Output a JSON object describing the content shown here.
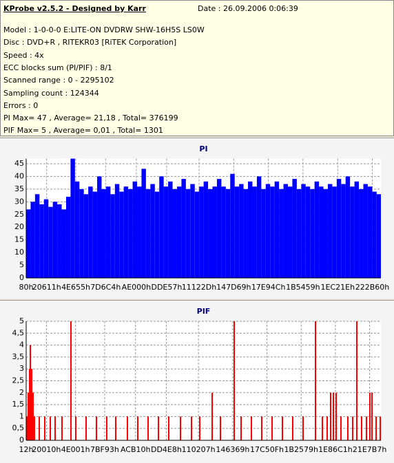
{
  "info": {
    "title": "KProbe v2.5.2 - Designed by Karr",
    "date": "Date : 26.09.2006 0:06:39",
    "lines": [
      "Model : 1-0-0-0 E:LITE-ON DVDRW SHW-16H5S  LS0W",
      "Disc : DVD+R , RITEKR03 [RiTEK Corporation]",
      "Speed : 4x",
      "ECC blocks sum (PI/PIF) : 8/1",
      "Scanned range : 0 - 2295102",
      "Sampling count : 124344",
      "Errors : 0",
      "PI Max= 47 , Average= 21,18 , Total= 376199",
      "PIF Max= 5 , Average= 0,01 , Total= 1301"
    ]
  },
  "chart_data": [
    {
      "type": "bar",
      "title": "PI",
      "color": "#0000ff",
      "grid": true,
      "xlim": [
        128,
        2295102
      ],
      "ylim": [
        0,
        47
      ],
      "yticks": [
        0,
        5,
        10,
        15,
        20,
        25,
        30,
        35,
        40,
        45
      ],
      "xticks": [
        {
          "value": 128,
          "label": "80h"
        },
        {
          "value": 132625,
          "label": "20611h"
        },
        {
          "value": 321109,
          "label": "4E655h"
        },
        {
          "value": 513732,
          "label": "7D6C4h"
        },
        {
          "value": 712704,
          "label": "AE000h"
        },
        {
          "value": 908887,
          "label": "DDE57h"
        },
        {
          "value": 1118765,
          "label": "11122Dh"
        },
        {
          "value": 1342825,
          "label": "147D69h"
        },
        {
          "value": 1567052,
          "label": "17E94Ch"
        },
        {
          "value": 1791065,
          "label": "1B5459h"
        },
        {
          "value": 2015774,
          "label": "1EC21Eh"
        },
        {
          "value": 2239328,
          "label": "222B60h"
        }
      ],
      "x": [
        128,
        28828,
        57528,
        86228,
        114928,
        143628,
        172328,
        201028,
        229728,
        258428,
        287128,
        315828,
        344528,
        373228,
        401928,
        430628,
        459328,
        488028,
        516728,
        545428,
        574128,
        602828,
        631528,
        660228,
        688928,
        717628,
        746328,
        775028,
        803728,
        832428,
        861128,
        889828,
        918528,
        947228,
        975928,
        1004628,
        1033328,
        1062028,
        1090728,
        1119428,
        1148128,
        1176828,
        1205528,
        1234228,
        1262928,
        1291628,
        1320328,
        1349028,
        1377728,
        1406428,
        1435128,
        1463828,
        1492528,
        1521228,
        1549928,
        1578628,
        1607328,
        1636028,
        1664728,
        1693428,
        1722128,
        1750828,
        1779528,
        1808228,
        1836928,
        1865628,
        1894328,
        1923028,
        1951728,
        1980428,
        2009128,
        2037828,
        2066528,
        2095228,
        2123928,
        2152628,
        2181328,
        2210028,
        2238728,
        2267428
      ],
      "values": [
        27,
        30,
        33,
        29,
        31,
        28,
        30,
        29,
        27,
        32,
        47,
        38,
        35,
        33,
        36,
        34,
        40,
        35,
        36,
        33,
        37,
        34,
        36,
        35,
        38,
        36,
        43,
        35,
        37,
        34,
        40,
        36,
        38,
        35,
        36,
        39,
        35,
        37,
        34,
        36,
        38,
        35,
        36,
        39,
        36,
        35,
        41,
        36,
        37,
        35,
        38,
        36,
        40,
        35,
        37,
        36,
        38,
        35,
        37,
        36,
        39,
        35,
        37,
        36,
        35,
        38,
        36,
        35,
        37,
        36,
        39,
        37,
        40,
        36,
        38,
        35,
        37,
        36,
        34,
        33
      ]
    },
    {
      "type": "spike",
      "title": "PIF",
      "color": "#ff0000",
      "grid": true,
      "xlim": [
        18,
        2295102
      ],
      "ylim": [
        0,
        5
      ],
      "yticks": [
        0,
        {
          "value": 0.5,
          "label": "0,5"
        },
        1,
        {
          "value": 1.5,
          "label": "1,5"
        },
        2,
        {
          "value": 2.5,
          "label": "2,5"
        },
        3,
        {
          "value": 3.5,
          "label": "3,5"
        },
        4,
        {
          "value": 4.5,
          "label": "4,5"
        },
        5
      ],
      "xticks": [
        {
          "value": 18,
          "label": "12h"
        },
        {
          "value": 131088,
          "label": "20010h"
        },
        {
          "value": 319489,
          "label": "4E001h"
        },
        {
          "value": 507795,
          "label": "7BF93h"
        },
        {
          "value": 707344,
          "label": "ACB10h"
        },
        {
          "value": 906472,
          "label": "DD4E8h"
        },
        {
          "value": 1114631,
          "label": "110207h"
        },
        {
          "value": 1336169,
          "label": "146369h"
        },
        {
          "value": 1557775,
          "label": "17C50Fh"
        },
        {
          "value": 1779065,
          "label": "1B2579h"
        },
        {
          "value": 2000577,
          "label": "1E86C1h"
        },
        {
          "value": 2222007,
          "label": "21E7B7h"
        }
      ],
      "x": [
        4474,
        13388,
        22300,
        26757,
        35670,
        44583,
        53496,
        84692,
        120344,
        155996,
        187191,
        231756,
        289691,
        320886,
        387733,
        454581,
        521429,
        579363,
        655129,
        721977,
        788828,
        855666,
        922514,
        998274,
        1069578,
        1123056,
        1203273,
        1256751,
        1345881,
        1390446,
        1457294,
        1524141,
        1590989,
        1657836,
        1724684,
        1791531,
        1871748,
        1916313,
        1947509,
        1969791,
        1987617,
        2005443,
        2036639,
        2081204,
        2112400,
        2139139,
        2170335,
        2201531,
        2223813,
        2237182,
        2263921,
        2290660
      ],
      "values": [
        1,
        2,
        3,
        4,
        3,
        2,
        1,
        1,
        1,
        1,
        1,
        1,
        5,
        1,
        1,
        1,
        1,
        1,
        1,
        1,
        1,
        1,
        1,
        1,
        1,
        1,
        2,
        1,
        5,
        1,
        1,
        1,
        1,
        1,
        1,
        1,
        5,
        1,
        1,
        2,
        2,
        2,
        1,
        1,
        1,
        5,
        1,
        1,
        2,
        2,
        1,
        1
      ]
    }
  ]
}
